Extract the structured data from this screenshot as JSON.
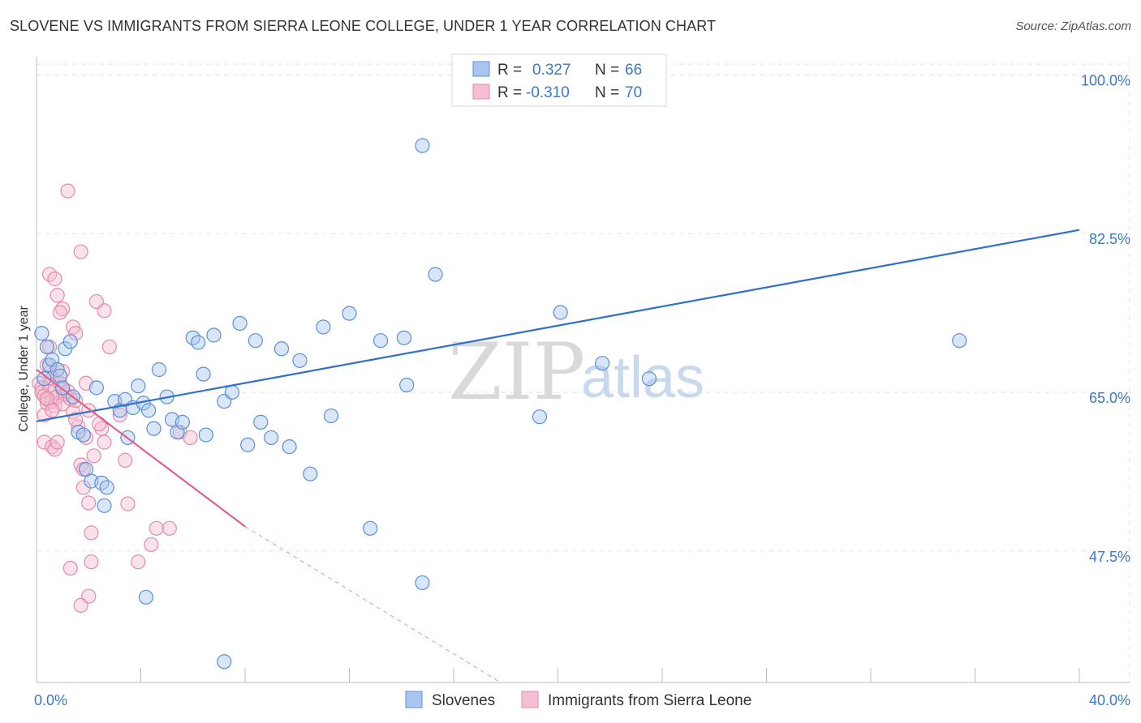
{
  "title": "SLOVENE VS IMMIGRANTS FROM SIERRA LEONE COLLEGE, UNDER 1 YEAR CORRELATION CHART",
  "source": "Source: ZipAtlas.com",
  "watermark": {
    "zip": "ZIP",
    "atlas": "atlas"
  },
  "colors": {
    "blue_stroke": "#5b8fd6",
    "blue_fill": "#a9c7ee",
    "blue_line": "#2f6fcf",
    "pink_stroke": "#e58aaa",
    "pink_fill": "#f5bfd1",
    "pink_line": "#e0608a",
    "grid": "#e3e3e3",
    "axis_text": "#3a78c9"
  },
  "legend_top": [
    {
      "r_label": "R =",
      "r_value": "0.327",
      "n_label": "N =",
      "n_value": "66"
    },
    {
      "r_label": "R =",
      "r_value": "-0.310",
      "n_label": "N =",
      "n_value": "70"
    }
  ],
  "legend_bottom": [
    "Slovenes",
    "Immigrants from Sierra Leone"
  ],
  "chart_data": {
    "type": "scatter",
    "ylabel": "College, Under 1 year",
    "xlim": [
      0,
      40
    ],
    "ylim": [
      33,
      102
    ],
    "y_ticks": [
      {
        "value": 100,
        "label": "100.0%"
      },
      {
        "value": 82.5,
        "label": "82.5%"
      },
      {
        "value": 65,
        "label": "65.0%"
      },
      {
        "value": 47.5,
        "label": "47.5%"
      }
    ],
    "x_tick_labels": [
      {
        "value": 0,
        "label": "0.0%"
      },
      {
        "value": 40,
        "label": "40.0%"
      }
    ],
    "x_minor_ticks": [
      0,
      4,
      8,
      12,
      16,
      20,
      24,
      28,
      32,
      36,
      40
    ],
    "grid": true,
    "legend_placement": "top-center",
    "series": [
      {
        "name": "Slovenes",
        "r": 0.327,
        "n": 66,
        "trend": {
          "x": [
            0,
            40
          ],
          "y": [
            61.8,
            82.9
          ]
        },
        "points": [
          [
            0.2,
            71.5
          ],
          [
            0.4,
            70
          ],
          [
            0.3,
            66.5
          ],
          [
            0.5,
            68
          ],
          [
            0.6,
            68.6
          ],
          [
            0.8,
            67.5
          ],
          [
            0.9,
            66.8
          ],
          [
            1.0,
            65.5
          ],
          [
            1.1,
            69.8
          ],
          [
            1.3,
            70.6
          ],
          [
            1.4,
            64.5
          ],
          [
            1.6,
            60.6
          ],
          [
            1.8,
            60.3
          ],
          [
            1.9,
            56.5
          ],
          [
            2.1,
            55.2
          ],
          [
            2.3,
            65.5
          ],
          [
            2.5,
            55
          ],
          [
            2.6,
            52.5
          ],
          [
            2.7,
            54.5
          ],
          [
            3.0,
            64
          ],
          [
            3.2,
            63
          ],
          [
            3.4,
            64.2
          ],
          [
            3.5,
            60
          ],
          [
            3.7,
            63.3
          ],
          [
            3.9,
            65.7
          ],
          [
            4.1,
            63.8
          ],
          [
            4.3,
            63
          ],
          [
            4.5,
            61
          ],
          [
            4.7,
            67.5
          ],
          [
            5.0,
            64.5
          ],
          [
            5.2,
            62
          ],
          [
            5.4,
            60.6
          ],
          [
            5.6,
            61.7
          ],
          [
            6.0,
            71
          ],
          [
            6.2,
            70.5
          ],
          [
            6.4,
            67
          ],
          [
            6.5,
            60.3
          ],
          [
            6.8,
            71.3
          ],
          [
            7.2,
            64
          ],
          [
            7.5,
            65
          ],
          [
            7.8,
            72.6
          ],
          [
            8.1,
            59.2
          ],
          [
            8.4,
            70.7
          ],
          [
            8.6,
            61.7
          ],
          [
            9.0,
            60
          ],
          [
            9.4,
            69.8
          ],
          [
            9.7,
            59
          ],
          [
            10.1,
            68.5
          ],
          [
            10.5,
            56
          ],
          [
            11.0,
            72.2
          ],
          [
            11.3,
            62.4
          ],
          [
            12.0,
            73.7
          ],
          [
            13.2,
            70.7
          ],
          [
            12.8,
            50
          ],
          [
            14.1,
            71
          ],
          [
            14.2,
            65.8
          ],
          [
            14.8,
            92.2
          ],
          [
            15.3,
            78
          ],
          [
            14.8,
            44
          ],
          [
            19.3,
            62.3
          ],
          [
            20.1,
            73.8
          ],
          [
            21.7,
            68.2
          ],
          [
            23.5,
            66.5
          ],
          [
            35.4,
            70.7
          ],
          [
            4.2,
            42.4
          ],
          [
            7.2,
            35.3
          ]
        ]
      },
      {
        "name": "Immigrants from Sierra Leone",
        "r": -0.31,
        "n": 70,
        "trend": {
          "x": [
            0,
            8
          ],
          "y": [
            67.5,
            50.2
          ]
        },
        "trend_extension": {
          "x": [
            8,
            17.8
          ],
          "y": [
            50.2,
            33
          ]
        },
        "points": [
          [
            0.1,
            66
          ],
          [
            0.2,
            65.5
          ],
          [
            0.2,
            65
          ],
          [
            0.3,
            64.6
          ],
          [
            0.3,
            62.5
          ],
          [
            0.4,
            64.2
          ],
          [
            0.4,
            63.8
          ],
          [
            0.5,
            67.2
          ],
          [
            0.5,
            65.8
          ],
          [
            0.6,
            64
          ],
          [
            0.6,
            66.5
          ],
          [
            0.7,
            65.2
          ],
          [
            0.7,
            63.5
          ],
          [
            0.8,
            64.5
          ],
          [
            0.9,
            66
          ],
          [
            1.0,
            65.3
          ],
          [
            1.0,
            63.7
          ],
          [
            1.1,
            64.8
          ],
          [
            1.2,
            65.1
          ],
          [
            1.3,
            64.3
          ],
          [
            1.4,
            62.8
          ],
          [
            1.5,
            64.1
          ],
          [
            1.6,
            61.2
          ],
          [
            1.2,
            87.2
          ],
          [
            0.5,
            78
          ],
          [
            0.7,
            77.5
          ],
          [
            0.8,
            75.7
          ],
          [
            1.0,
            74.2
          ],
          [
            0.9,
            73.8
          ],
          [
            1.4,
            72.2
          ],
          [
            1.5,
            71.5
          ],
          [
            1.7,
            80.5
          ],
          [
            1.9,
            60
          ],
          [
            0.5,
            70
          ],
          [
            0.4,
            68
          ],
          [
            0.3,
            59.5
          ],
          [
            0.6,
            59
          ],
          [
            0.7,
            58.7
          ],
          [
            0.8,
            59.5
          ],
          [
            2.5,
            61
          ],
          [
            1.5,
            62
          ],
          [
            1.7,
            57
          ],
          [
            1.8,
            56.5
          ],
          [
            2.0,
            52.8
          ],
          [
            1.8,
            54.5
          ],
          [
            2.0,
            63
          ],
          [
            2.2,
            58
          ],
          [
            2.6,
            59.5
          ],
          [
            2.4,
            61.5
          ],
          [
            1.9,
            66
          ],
          [
            2.6,
            74
          ],
          [
            2.8,
            70
          ],
          [
            3.2,
            62.5
          ],
          [
            3.4,
            57.5
          ],
          [
            3.5,
            52.7
          ],
          [
            3.9,
            46.3
          ],
          [
            4.4,
            48.2
          ],
          [
            4.6,
            50
          ],
          [
            5.1,
            50
          ],
          [
            5.5,
            60.6
          ],
          [
            5.9,
            60
          ],
          [
            1.3,
            45.6
          ],
          [
            2.1,
            49.5
          ],
          [
            2.1,
            46.3
          ],
          [
            2.0,
            42.5
          ],
          [
            1.7,
            41.5
          ],
          [
            0.4,
            64.3
          ],
          [
            0.6,
            63
          ],
          [
            1.0,
            67.3
          ],
          [
            2.3,
            75
          ]
        ]
      }
    ]
  }
}
